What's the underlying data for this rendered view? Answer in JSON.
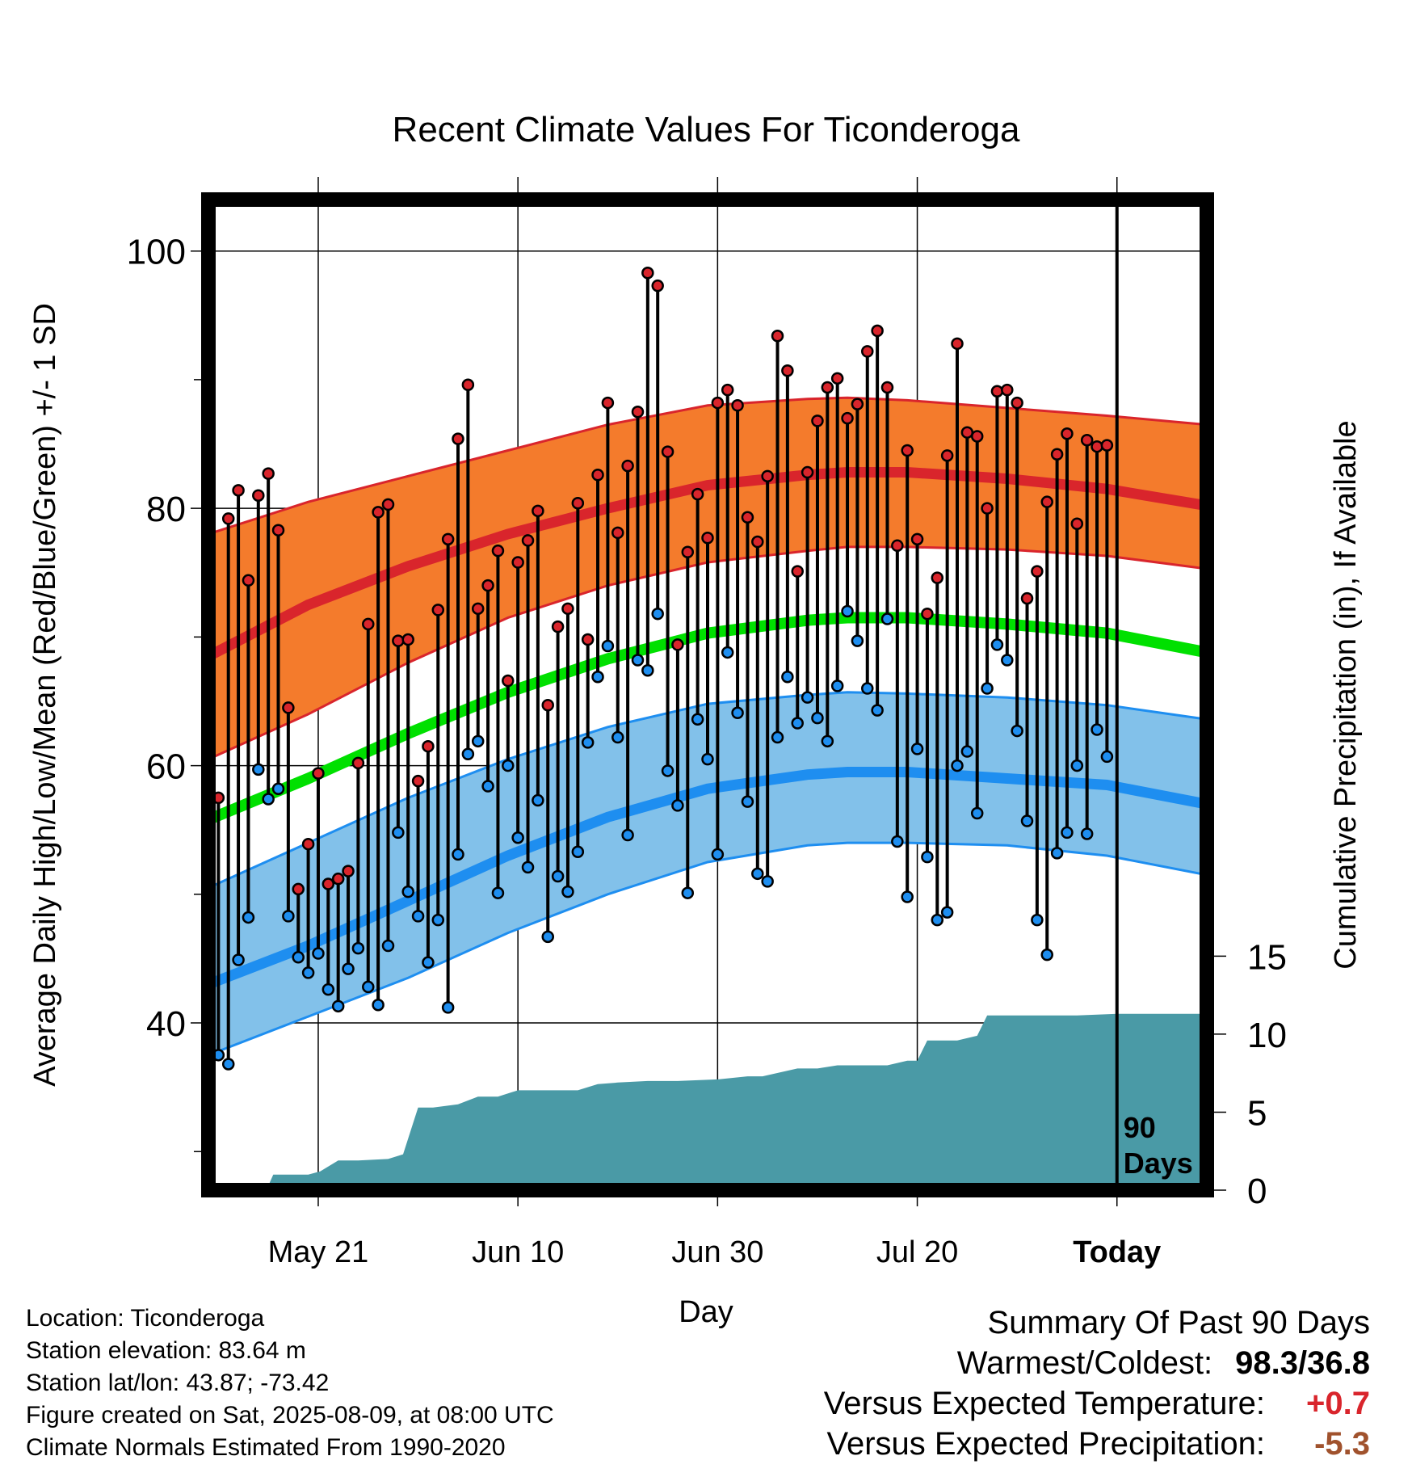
{
  "chart_data": {
    "type": "line",
    "title": "Recent Climate Values For Ticonderoga",
    "xlabel": "Day",
    "ylabel": "Average Daily High/Low/Mean (Red/Blue/Green) +/- 1 SD",
    "ylabel_right": "Cumulative Precipitation (in), If Available",
    "x_tick_labels": [
      "May 21",
      "Jun 10",
      "Jun 30",
      "Jul 20",
      "Today"
    ],
    "x_tick_days": [
      10,
      30,
      50,
      70,
      90
    ],
    "x_range": [
      -1,
      99
    ],
    "y_ticks": [
      40,
      60,
      80,
      100
    ],
    "ylim": [
      27,
      104
    ],
    "y_right_ticks": [
      0,
      5,
      10,
      15
    ],
    "y_right_range": [
      0,
      63.5
    ],
    "today_label": "90\nDays",
    "grid": true,
    "series": [
      {
        "name": "High",
        "color": "#d9252c"
      },
      {
        "name": "Low",
        "color": "#1e8ef0"
      },
      {
        "name": "Mean",
        "color": "#00e000"
      }
    ],
    "normals": {
      "days": [
        -1,
        9,
        19,
        29,
        39,
        49,
        59,
        63,
        69,
        79,
        89,
        99
      ],
      "high_mean": [
        68.5,
        72.5,
        75.5,
        78.0,
        80.0,
        81.8,
        82.6,
        82.8,
        82.8,
        82.3,
        81.5,
        80.2
      ],
      "high_sd_upper": [
        78,
        80.5,
        82.5,
        84.5,
        86.5,
        88.0,
        88.5,
        88.6,
        88.4,
        87.8,
        87.2,
        86.5
      ],
      "high_sd_lower": [
        60.5,
        64.0,
        68.0,
        71.5,
        74.0,
        75.8,
        76.7,
        77.0,
        77.0,
        76.8,
        76.3,
        75.3
      ],
      "mean": [
        55.8,
        59.0,
        62.5,
        65.7,
        68.3,
        70.3,
        71.3,
        71.5,
        71.5,
        71.0,
        70.3,
        68.8
      ],
      "low_mean": [
        43.0,
        46.0,
        49.5,
        53.0,
        56.0,
        58.2,
        59.3,
        59.5,
        59.5,
        59.0,
        58.5,
        57.0
      ],
      "low_sd_upper": [
        50.5,
        54.0,
        57.5,
        60.5,
        63.0,
        64.8,
        65.5,
        65.7,
        65.6,
        65.3,
        64.7,
        63.6
      ],
      "low_sd_lower": [
        37.5,
        40.5,
        43.5,
        47.0,
        50.0,
        52.5,
        53.8,
        54.0,
        54.0,
        53.8,
        53.0,
        51.5
      ]
    },
    "daily": {
      "highs": [
        57.5,
        79.2,
        81.4,
        74.4,
        81.0,
        82.7,
        78.3,
        64.5,
        50.4,
        53.9,
        59.4,
        50.8,
        51.2,
        51.8,
        60.2,
        71.0,
        79.7,
        80.3,
        69.7,
        69.8,
        58.8,
        61.5,
        72.1,
        77.6,
        85.4,
        89.6,
        72.2,
        74.0,
        76.7,
        66.6,
        75.8,
        77.5,
        79.8,
        64.7,
        70.8,
        72.2,
        80.4,
        69.8,
        82.6,
        88.2,
        78.1,
        83.3,
        87.5,
        98.3,
        97.3,
        84.4,
        69.4,
        76.6,
        81.1,
        77.7,
        88.2,
        89.2,
        88.0,
        79.3,
        77.4,
        82.5,
        93.4,
        90.7,
        75.1,
        82.8,
        86.8,
        89.4,
        90.1,
        87.0,
        88.1,
        92.2,
        93.8,
        89.4,
        77.1,
        84.5,
        77.6,
        71.8,
        74.6,
        84.1,
        92.8,
        85.9,
        85.6,
        80.0,
        89.1,
        89.2,
        88.2,
        73.0,
        75.1,
        80.5,
        84.2,
        85.8,
        78.8,
        85.3,
        84.8,
        84.9
      ],
      "lows": [
        37.5,
        36.8,
        44.9,
        48.2,
        59.7,
        57.4,
        58.2,
        48.3,
        45.1,
        43.9,
        45.4,
        42.6,
        41.3,
        44.2,
        45.8,
        42.8,
        41.4,
        46.0,
        54.8,
        50.2,
        48.3,
        44.7,
        48.0,
        41.2,
        53.1,
        60.9,
        61.9,
        58.4,
        50.1,
        60.0,
        54.4,
        52.1,
        57.3,
        46.7,
        51.4,
        50.2,
        53.3,
        61.8,
        66.9,
        69.3,
        62.2,
        54.6,
        68.2,
        67.4,
        71.8,
        59.6,
        56.9,
        50.1,
        63.6,
        60.5,
        53.1,
        68.8,
        64.1,
        57.2,
        51.6,
        51.0,
        62.2,
        66.9,
        63.3,
        65.3,
        63.7,
        61.9,
        66.2,
        72.0,
        69.7,
        66.0,
        64.3,
        71.4,
        54.1,
        49.8,
        61.3,
        52.9,
        48.0,
        48.6,
        60.0,
        61.1,
        56.3,
        66.0,
        69.4,
        68.2,
        62.7,
        55.7,
        48.0,
        45.3,
        53.2,
        54.8,
        60.0,
        54.7,
        62.8,
        60.7
      ]
    },
    "precip": {
      "days": [
        0,
        4.8,
        5.5,
        9,
        10.2,
        12,
        14,
        17,
        18.5,
        20,
        21.5,
        24,
        26,
        28,
        30,
        32,
        36,
        38,
        40,
        43,
        46,
        50,
        53,
        54.5,
        58,
        60,
        62,
        67,
        69,
        70,
        71,
        74,
        76,
        77,
        80,
        84,
        86,
        90,
        95,
        99
      ],
      "totals": [
        0,
        0,
        1.0,
        1.0,
        1.2,
        1.9,
        1.9,
        2.0,
        2.3,
        5.3,
        5.3,
        5.5,
        6.0,
        6.0,
        6.4,
        6.4,
        6.4,
        6.8,
        6.9,
        7.0,
        7.0,
        7.1,
        7.3,
        7.3,
        7.8,
        7.8,
        8.0,
        8.0,
        8.3,
        8.3,
        9.6,
        9.6,
        9.9,
        11.2,
        11.2,
        11.2,
        11.2,
        11.3,
        11.3,
        11.3
      ]
    },
    "colors": {
      "high_band": "#f47b2c",
      "high_edge": "#d9252c",
      "low_band": "#82c1ea",
      "low_edge": "#1e8ef0",
      "mean_line": "#00e000",
      "precip": "#4a9aa6"
    }
  },
  "location": {
    "location_line": "Location: Ticonderoga",
    "elevation_line": "Station elevation: 83.64 m",
    "latlon_line": "Station lat/lon: 43.87; -73.42",
    "created_line": "Figure created on Sat, 2025-08-09, at 08:00 UTC",
    "normals_line": "Climate Normals Estimated From 1990-2020"
  },
  "summary": {
    "title": "Summary Of Past 90 Days",
    "warm_cold_label": "Warmest/Coldest:",
    "warm_cold_value": "98.3/36.8",
    "temp_label": "Versus Expected Temperature:",
    "temp_value": "+0.7",
    "temp_color": "#d9252c",
    "precip_label": "Versus Expected Precipitation:",
    "precip_value": "-5.3",
    "precip_color": "#a0522d"
  }
}
